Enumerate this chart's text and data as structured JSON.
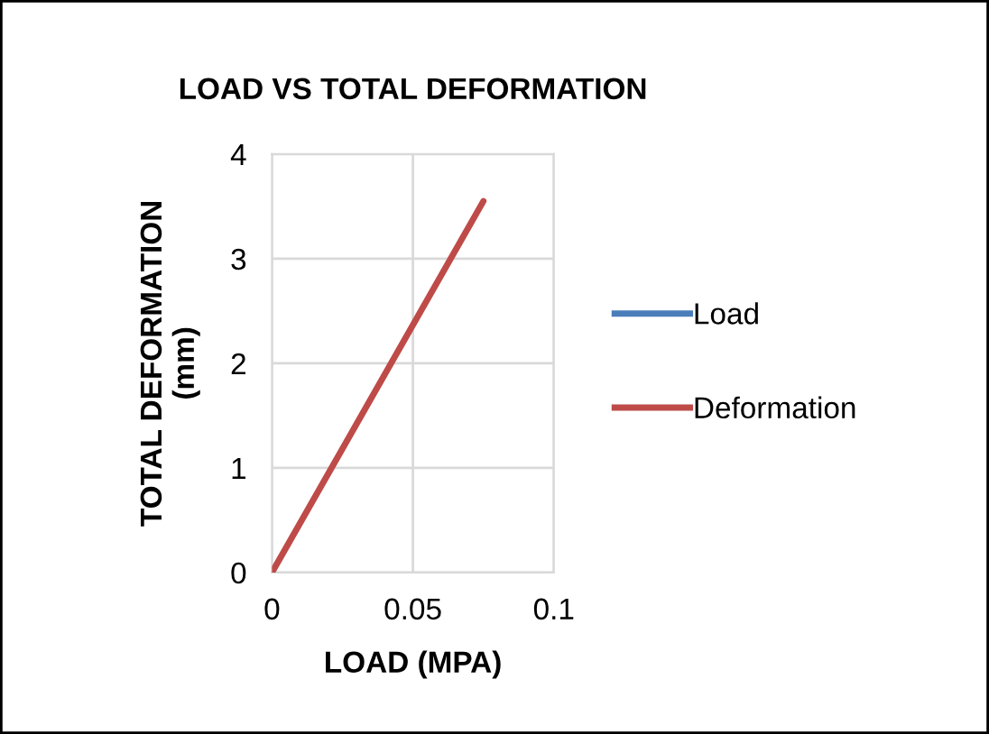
{
  "chart_data": {
    "type": "line",
    "title": "LOAD VS TOTAL DEFORMATION",
    "xlabel": "LOAD (MPA)",
    "ylabel": "TOTAL DEFORMATION\n(mm)",
    "x": [
      0,
      0.075
    ],
    "series": [
      {
        "name": "Load",
        "color": "#4a7ebb",
        "values": [
          null,
          null
        ]
      },
      {
        "name": "Deformation",
        "color": "#be4b48",
        "values": [
          0,
          3.55
        ]
      }
    ],
    "xlim": [
      0,
      0.1
    ],
    "xticks": [
      0,
      0.05,
      0.1
    ],
    "ylim": [
      0,
      4
    ],
    "yticks": [
      0,
      1,
      2,
      3,
      4
    ],
    "grid": true,
    "legend": "right",
    "marker": "none",
    "line_style": "solid"
  }
}
